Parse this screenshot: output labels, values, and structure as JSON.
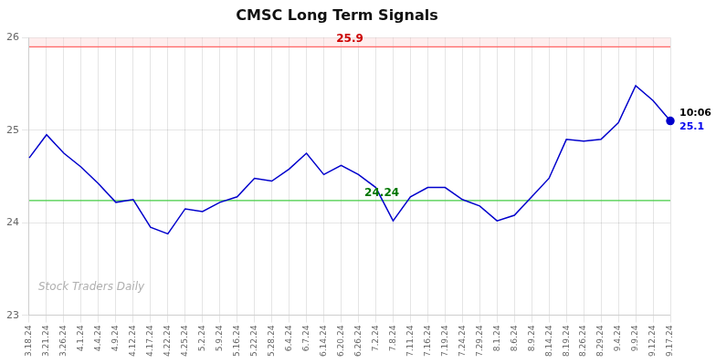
{
  "chart_data": {
    "type": "line",
    "title": "CMSC Long Term Signals",
    "categories": [
      "3.18.24",
      "3.21.24",
      "3.26.24",
      "4.1.24",
      "4.4.24",
      "4.9.24",
      "4.12.24",
      "4.17.24",
      "4.22.24",
      "4.25.24",
      "5.2.24",
      "5.9.24",
      "5.16.24",
      "5.22.24",
      "5.28.24",
      "6.4.24",
      "6.7.24",
      "6.14.24",
      "6.20.24",
      "6.26.24",
      "7.2.24",
      "7.8.24",
      "7.11.24",
      "7.16.24",
      "7.19.24",
      "7.24.24",
      "7.29.24",
      "8.1.24",
      "8.6.24",
      "8.9.24",
      "8.14.24",
      "8.19.24",
      "8.26.24",
      "8.29.24",
      "9.4.24",
      "9.9.24",
      "9.12.24",
      "9.17.24"
    ],
    "values": [
      24.7,
      24.95,
      24.75,
      24.6,
      24.42,
      24.22,
      24.25,
      23.95,
      23.88,
      24.15,
      24.12,
      24.22,
      24.28,
      24.48,
      24.45,
      24.58,
      24.75,
      24.52,
      24.62,
      24.52,
      24.38,
      24.02,
      24.28,
      24.38,
      24.38,
      24.25,
      24.18,
      24.02,
      24.08,
      24.28,
      24.48,
      24.9,
      24.88,
      24.9,
      25.08,
      25.48,
      25.32,
      25.1
    ],
    "color": "#0000cc",
    "ylim": [
      23,
      26
    ],
    "yticks": [
      23,
      24,
      25,
      26
    ],
    "grid": true,
    "hlines": [
      {
        "y": 25.9,
        "color": "#ff6666",
        "label": "25.9",
        "label_color": "#cc0000",
        "band_to": 26.0,
        "band_color": "#ffcccc"
      },
      {
        "y": 24.24,
        "color": "#44cc44",
        "label": "24.24",
        "label_color": "#007700"
      }
    ],
    "annotations": [
      {
        "text": "10:06",
        "color": "#000000"
      },
      {
        "text": "25.1",
        "color": "#0000ee"
      },
      {
        "text": "Stock Traders Daily",
        "color": "#b0b0b0"
      }
    ]
  }
}
